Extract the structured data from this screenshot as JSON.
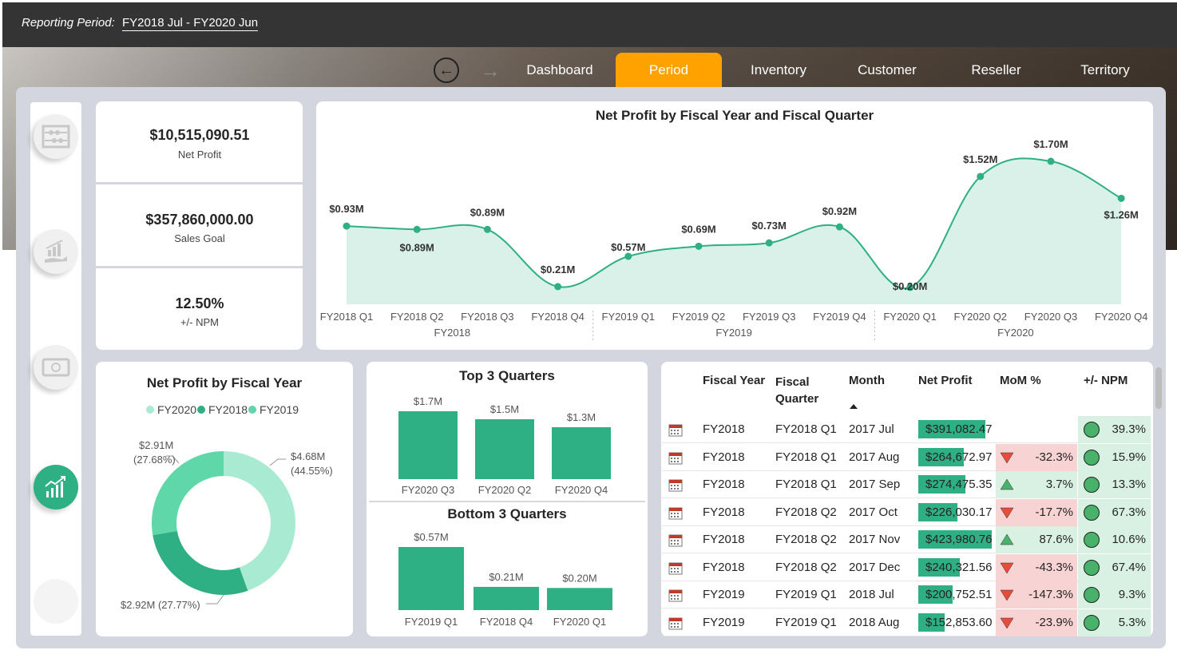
{
  "header": {
    "period_label": "Reporting Period:",
    "period_value": "FY2018  Jul - FY2020  Jun"
  },
  "nav": {
    "tabs": [
      {
        "label": "Dashboard",
        "active": false
      },
      {
        "label": "Period",
        "active": true
      },
      {
        "label": "Inventory",
        "active": false
      },
      {
        "label": "Customer",
        "active": false
      },
      {
        "label": "Reseller",
        "active": false
      },
      {
        "label": "Territory",
        "active": false
      }
    ],
    "accent": "#ffa200"
  },
  "sidebar": {
    "icons": [
      "abacus-icon",
      "growth-hand-icon",
      "money-icon",
      "trend-chart-icon",
      "blank-icon"
    ]
  },
  "kpis": [
    {
      "value": "$10,515,090.51",
      "label": "Net Profit"
    },
    {
      "value": "$357,860,000.00",
      "label": "Sales Goal"
    },
    {
      "value": "12.50%",
      "label": "+/- NPM"
    }
  ],
  "chart_data": [
    {
      "type": "area",
      "title": "Net Profit by Fiscal Year and Fiscal Quarter",
      "categories": [
        "FY2018 Q1",
        "FY2018 Q2",
        "FY2018 Q3",
        "FY2018 Q4",
        "FY2019 Q1",
        "FY2019 Q2",
        "FY2019 Q3",
        "FY2019 Q4",
        "FY2020 Q1",
        "FY2020 Q2",
        "FY2020 Q3",
        "FY2020 Q4"
      ],
      "groups": [
        "FY2018",
        "FY2019",
        "FY2020"
      ],
      "values": [
        0.93,
        0.89,
        0.89,
        0.21,
        0.57,
        0.69,
        0.73,
        0.92,
        0.2,
        1.52,
        1.7,
        1.26
      ],
      "labels": [
        "$0.93M",
        "$0.89M",
        "$0.89M",
        "$0.21M",
        "$0.57M",
        "$0.69M",
        "$0.73M",
        "$0.92M",
        "$0.20M",
        "$1.52M",
        "$1.70M",
        "$1.26M"
      ],
      "color": "#2faf84",
      "fill": "#d9f1e8"
    },
    {
      "type": "pie",
      "title": "Net Profit by Fiscal Year",
      "legend": [
        "FY2020",
        "FY2018",
        "FY2019"
      ],
      "slices": [
        {
          "name": "FY2020",
          "value": 4.68,
          "label": "$4.68M",
          "pct": "(44.55%)",
          "color": "#a8ebd2"
        },
        {
          "name": "FY2018",
          "value": 2.92,
          "label": "$2.92M (27.77%)",
          "color": "#2faf84"
        },
        {
          "name": "FY2019",
          "value": 2.91,
          "label": "$2.91M",
          "pct": "(27.68%)",
          "color": "#5fd7a8"
        }
      ]
    },
    {
      "type": "bar",
      "title": "Top 3 Quarters",
      "categories": [
        "FY2020 Q3",
        "FY2020 Q2",
        "FY2020 Q4"
      ],
      "values": [
        1.7,
        1.5,
        1.3
      ],
      "labels": [
        "$1.7M",
        "$1.5M",
        "$1.3M"
      ],
      "color": "#2faf84"
    },
    {
      "type": "bar",
      "title": "Bottom 3 Quarters",
      "categories": [
        "FY2019 Q1",
        "FY2018 Q4",
        "FY2020 Q1"
      ],
      "values": [
        0.57,
        0.21,
        0.2
      ],
      "labels": [
        "$0.57M",
        "$0.21M",
        "$0.20M"
      ],
      "color": "#2faf84"
    }
  ],
  "table": {
    "headers": [
      "Fiscal Year",
      "Fiscal Quarter",
      "Month",
      "Net Profit",
      "MoM %",
      "+/- NPM"
    ],
    "rows": [
      {
        "fy": "FY2018",
        "fq": "FY2018 Q1",
        "month": "2017 Jul",
        "np": "$391,082.47",
        "np_val": 391082.47,
        "mom": "",
        "trend": "none",
        "npm": "39.3%"
      },
      {
        "fy": "FY2018",
        "fq": "FY2018 Q1",
        "month": "2017 Aug",
        "np": "$264,672.97",
        "np_val": 264672.97,
        "mom": "-32.3%",
        "trend": "down",
        "npm": "15.9%"
      },
      {
        "fy": "FY2018",
        "fq": "FY2018 Q1",
        "month": "2017 Sep",
        "np": "$274,475.35",
        "np_val": 274475.35,
        "mom": "3.7%",
        "trend": "up",
        "npm": "13.3%"
      },
      {
        "fy": "FY2018",
        "fq": "FY2018 Q2",
        "month": "2017 Oct",
        "np": "$226,030.17",
        "np_val": 226030.17,
        "mom": "-17.7%",
        "trend": "down",
        "npm": "67.3%"
      },
      {
        "fy": "FY2018",
        "fq": "FY2018 Q2",
        "month": "2017 Nov",
        "np": "$423,980.76",
        "np_val": 423980.76,
        "mom": "87.6%",
        "trend": "up",
        "npm": "10.6%"
      },
      {
        "fy": "FY2018",
        "fq": "FY2018 Q2",
        "month": "2017 Dec",
        "np": "$240,321.56",
        "np_val": 240321.56,
        "mom": "-43.3%",
        "trend": "down",
        "npm": "67.4%"
      },
      {
        "fy": "FY2019",
        "fq": "FY2019 Q1",
        "month": "2018 Jul",
        "np": "$200,752.51",
        "np_val": 200752.51,
        "mom": "-147.3%",
        "trend": "down",
        "npm": "9.3%"
      },
      {
        "fy": "FY2019",
        "fq": "FY2019 Q1",
        "month": "2018 Aug",
        "np": "$152,853.60",
        "np_val": 152853.6,
        "mom": "-23.9%",
        "trend": "down",
        "npm": "5.3%"
      }
    ]
  }
}
